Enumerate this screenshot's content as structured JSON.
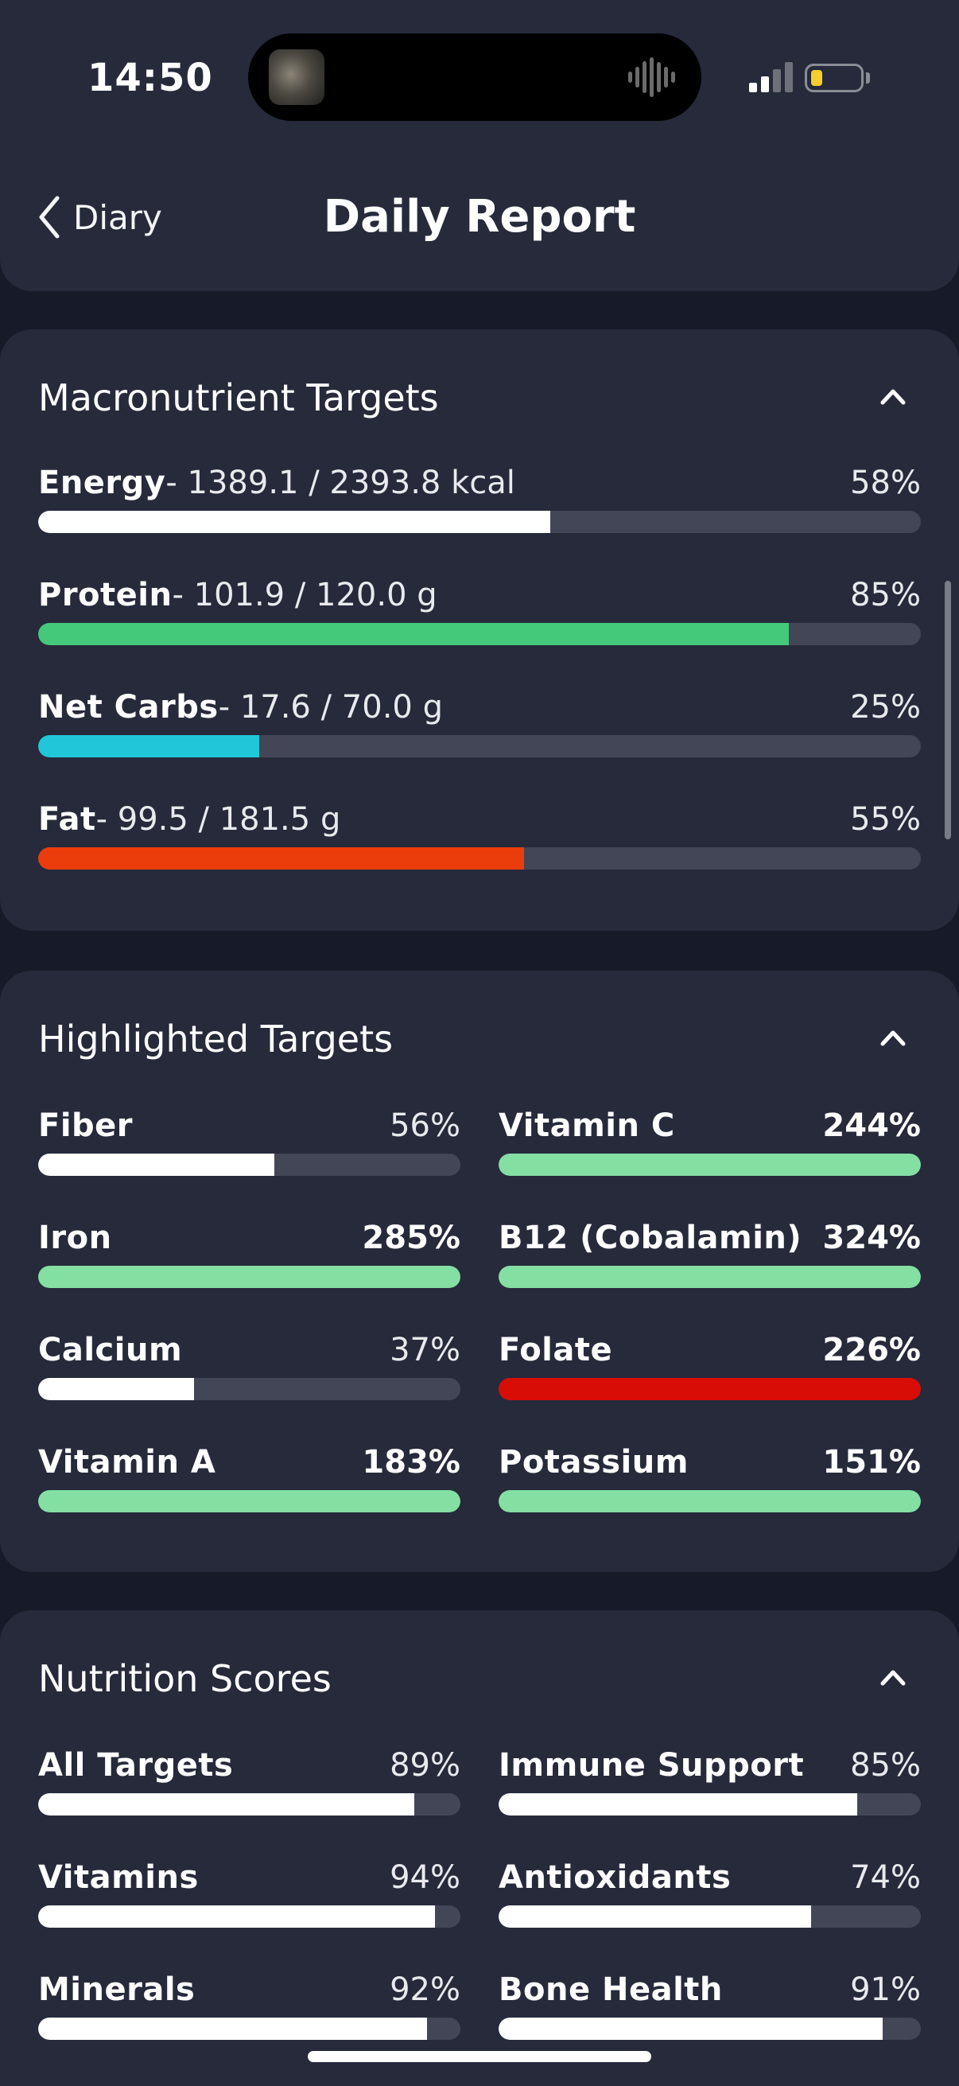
{
  "status_bar": {
    "time": "14:50",
    "signal_icon": "cellular-signal-icon",
    "battery_icon": "battery-low-icon",
    "battery_color": "#f6cf2e"
  },
  "header": {
    "back_label": "Diary",
    "title": "Daily Report"
  },
  "macro": {
    "title": "Macronutrient Targets",
    "items": [
      {
        "name": "Energy",
        "detail": "- 1389.1 / 2393.8 kcal",
        "pct": "58%",
        "fraction": 0.58,
        "color": "#ffffff"
      },
      {
        "name": "Protein",
        "detail": "- 101.9 / 120.0 g",
        "pct": "85%",
        "fraction": 0.85,
        "color": "#44c97a"
      },
      {
        "name": "Net Carbs",
        "detail": "- 17.6 / 70.0 g",
        "pct": "25%",
        "fraction": 0.25,
        "color": "#21c7d9"
      },
      {
        "name": "Fat",
        "detail": "- 99.5 / 181.5 g",
        "pct": "55%",
        "fraction": 0.55,
        "color": "#ea3d0b"
      }
    ]
  },
  "highlighted": {
    "title": "Highlighted Targets",
    "items": [
      {
        "name": "Fiber",
        "pct": "56%",
        "fraction": 0.56,
        "color": "#ffffff",
        "bold": false
      },
      {
        "name": "Vitamin C",
        "pct": "244%",
        "fraction": 1.0,
        "color": "#84dfa3",
        "bold": true
      },
      {
        "name": "Iron",
        "pct": "285%",
        "fraction": 1.0,
        "color": "#84dfa3",
        "bold": true
      },
      {
        "name": "B12 (Cobalamin)",
        "pct": "324%",
        "fraction": 1.0,
        "color": "#84dfa3",
        "bold": true
      },
      {
        "name": "Calcium",
        "pct": "37%",
        "fraction": 0.37,
        "color": "#ffffff",
        "bold": false
      },
      {
        "name": "Folate",
        "pct": "226%",
        "fraction": 1.0,
        "color": "#d80d05",
        "bold": true
      },
      {
        "name": "Vitamin A",
        "pct": "183%",
        "fraction": 1.0,
        "color": "#84dfa3",
        "bold": true
      },
      {
        "name": "Potassium",
        "pct": "151%",
        "fraction": 1.0,
        "color": "#84dfa3",
        "bold": true
      }
    ]
  },
  "scores": {
    "title": "Nutrition Scores",
    "items": [
      {
        "name": "All Targets",
        "pct": "89%",
        "fraction": 0.89,
        "color": "#ffffff"
      },
      {
        "name": "Immune Support",
        "pct": "85%",
        "fraction": 0.85,
        "color": "#ffffff"
      },
      {
        "name": "Vitamins",
        "pct": "94%",
        "fraction": 0.94,
        "color": "#ffffff"
      },
      {
        "name": "Antioxidants",
        "pct": "74%",
        "fraction": 0.74,
        "color": "#ffffff"
      },
      {
        "name": "Minerals",
        "pct": "92%",
        "fraction": 0.92,
        "color": "#ffffff"
      },
      {
        "name": "Bone Health",
        "pct": "91%",
        "fraction": 0.91,
        "color": "#ffffff"
      }
    ]
  }
}
